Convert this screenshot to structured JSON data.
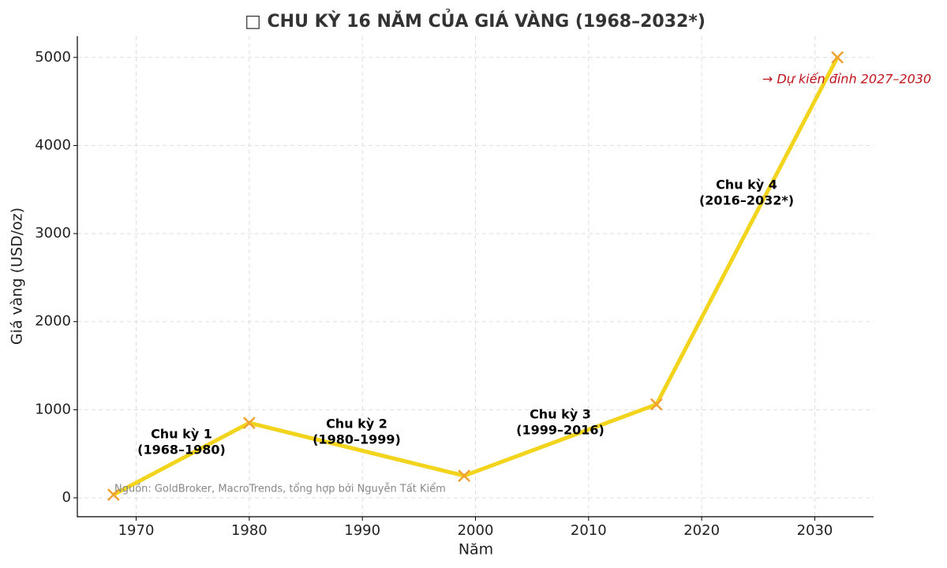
{
  "chart_data": {
    "type": "line",
    "title": "□ CHU KỲ 16 NĂM CỦA GIÁ VÀNG (1968–2032*)",
    "x_label": "Năm",
    "y_label": "Giá vàng (USD/oz)",
    "x": [
      1968,
      1980,
      1999,
      2016,
      2032
    ],
    "values": [
      35,
      850,
      250,
      1060,
      5000
    ],
    "color": "#f2d41c",
    "marker_color": "#f0a030",
    "xlim": [
      1964.8,
      2035.2
    ],
    "ylim": [
      -215,
      5240
    ],
    "xticks": [
      1970,
      1980,
      1990,
      2000,
      2010,
      2020,
      2030
    ],
    "yticks": [
      0,
      1000,
      2000,
      3000,
      4000,
      5000
    ],
    "grid": true,
    "annotations": [
      [
        "Chu kỳ 1",
        "(1968–1980)"
      ],
      [
        "Chu kỳ 2",
        "(1980–1999)"
      ],
      [
        "Chu kỳ 3",
        "(1999–2016)"
      ],
      [
        "Chu kỳ 4",
        "(2016–2032*)"
      ]
    ],
    "forecast_note": "→ Dự kiến đỉnh 2027–2030",
    "source": "Nguồn: GoldBroker, MacroTrends, tổng hợp bởi Nguyễn Tất Kiểm"
  }
}
